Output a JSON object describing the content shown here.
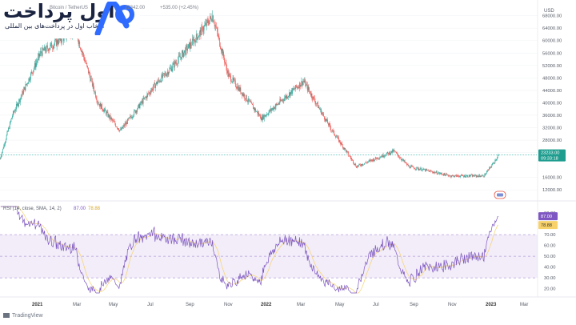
{
  "brand": {
    "name": "اول پرداخت",
    "tagline": "انتخاب اول در پرداخت‌های بین المللی",
    "accent": "#2f6bff",
    "dark": "#1a2340"
  },
  "header": {
    "symbol": "Bitcoin / TetherUS",
    "price_fragment": "22342.00",
    "change": "+535.00 (+2.45%)"
  },
  "footer": {
    "brand_label": "TradingView"
  },
  "colors": {
    "up": "#26a69a",
    "down": "#ef5350",
    "rsi_line": "#7e57c2",
    "rsi_ma": "#f7d26b",
    "rsi_band": "#ede7f6",
    "price_line": "#26a69a"
  },
  "chart_data": [
    {
      "type": "candlestick",
      "ylabel": "USD",
      "y_tick_labels": [
        "68000.00",
        "64000.00",
        "60000.00",
        "56000.00",
        "52000.00",
        "48000.00",
        "44000.00",
        "40000.00",
        "36000.00",
        "32000.00",
        "28000.00",
        "24000.00",
        "16000.00",
        "12000.00"
      ],
      "x_tick_labels": [
        "2021",
        "Mar",
        "May",
        "Jul",
        "Sep",
        "Nov",
        "2022",
        "Mar",
        "May",
        "Jul",
        "Sep",
        "Nov",
        "2023",
        "Mar"
      ],
      "ylim": [
        10000,
        71000
      ],
      "last_price": "23233.00",
      "countdown": "09:33:18",
      "anchors_x": [
        "2020-12-20",
        "2021-01-08",
        "2021-02-20",
        "2021-04-14",
        "2021-05-19",
        "2021-06-22",
        "2021-08-15",
        "2021-09-07",
        "2021-10-20",
        "2021-11-10",
        "2021-12-04",
        "2022-01-24",
        "2022-03-29",
        "2022-05-09",
        "2022-06-18",
        "2022-08-14",
        "2022-09-06",
        "2022-11-09",
        "2022-12-30",
        "2023-01-14",
        "2023-01-21"
      ],
      "anchors_y": [
        22000,
        36000,
        56000,
        63500,
        40000,
        31000,
        46000,
        51000,
        62000,
        68000,
        49000,
        35000,
        47000,
        32000,
        19500,
        24500,
        19500,
        16500,
        16500,
        20800,
        23233
      ]
    },
    {
      "type": "line",
      "title": "RSI (14, close, SMA, 14, 2)",
      "legend_values": [
        "87.00",
        "78.88"
      ],
      "series": [
        {
          "name": "RSI"
        },
        {
          "name": "RSI MA"
        }
      ],
      "y_tick_labels": [
        "90.00",
        "70.00",
        "60.00",
        "50.00",
        "40.00",
        "30.00",
        "20.00"
      ],
      "ylim": [
        16,
        96
      ],
      "bands": [
        30,
        50,
        70
      ],
      "current_rsi": 87.0,
      "current_ma": 78.88
    }
  ]
}
